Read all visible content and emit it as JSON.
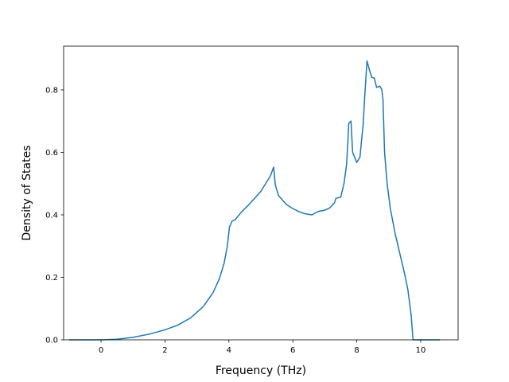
{
  "chart_data": {
    "type": "line",
    "title": "",
    "xlabel": "Frequency (THz)",
    "ylabel": "Density of States",
    "xlim": [
      -1.17,
      11.17
    ],
    "ylim": [
      0.0,
      0.94
    ],
    "grid": false,
    "legend": "none",
    "xticks": [
      0,
      2,
      4,
      6,
      8,
      10
    ],
    "yticks": [
      0.0,
      0.2,
      0.4,
      0.6,
      0.8
    ],
    "xtick_labels": [
      "0",
      "2",
      "4",
      "6",
      "8",
      "10"
    ],
    "ytick_labels": [
      "0.0",
      "0.2",
      "0.4",
      "0.6",
      "0.8"
    ],
    "series": [
      {
        "color": "#1f77b4",
        "points": [
          [
            -1.0,
            0.0
          ],
          [
            0.0,
            0.0
          ],
          [
            0.5,
            0.002
          ],
          [
            1.0,
            0.008
          ],
          [
            1.5,
            0.018
          ],
          [
            2.0,
            0.032
          ],
          [
            2.4,
            0.047
          ],
          [
            2.8,
            0.07
          ],
          [
            3.2,
            0.107
          ],
          [
            3.5,
            0.15
          ],
          [
            3.7,
            0.195
          ],
          [
            3.85,
            0.245
          ],
          [
            3.95,
            0.3
          ],
          [
            4.02,
            0.362
          ],
          [
            4.1,
            0.38
          ],
          [
            4.2,
            0.385
          ],
          [
            4.4,
            0.41
          ],
          [
            4.6,
            0.43
          ],
          [
            5.0,
            0.475
          ],
          [
            5.3,
            0.525
          ],
          [
            5.4,
            0.553
          ],
          [
            5.45,
            0.497
          ],
          [
            5.55,
            0.462
          ],
          [
            5.8,
            0.433
          ],
          [
            6.0,
            0.42
          ],
          [
            6.2,
            0.41
          ],
          [
            6.4,
            0.403
          ],
          [
            6.6,
            0.4
          ],
          [
            6.7,
            0.406
          ],
          [
            6.8,
            0.411
          ],
          [
            7.0,
            0.415
          ],
          [
            7.15,
            0.422
          ],
          [
            7.3,
            0.438
          ],
          [
            7.35,
            0.453
          ],
          [
            7.5,
            0.457
          ],
          [
            7.6,
            0.5
          ],
          [
            7.68,
            0.56
          ],
          [
            7.72,
            0.63
          ],
          [
            7.75,
            0.693
          ],
          [
            7.82,
            0.7
          ],
          [
            7.87,
            0.6
          ],
          [
            8.0,
            0.568
          ],
          [
            8.1,
            0.585
          ],
          [
            8.2,
            0.69
          ],
          [
            8.25,
            0.78
          ],
          [
            8.32,
            0.893
          ],
          [
            8.4,
            0.862
          ],
          [
            8.47,
            0.84
          ],
          [
            8.55,
            0.838
          ],
          [
            8.62,
            0.808
          ],
          [
            8.72,
            0.812
          ],
          [
            8.78,
            0.802
          ],
          [
            8.82,
            0.77
          ],
          [
            8.87,
            0.6
          ],
          [
            8.95,
            0.5
          ],
          [
            9.05,
            0.42
          ],
          [
            9.2,
            0.34
          ],
          [
            9.35,
            0.275
          ],
          [
            9.5,
            0.21
          ],
          [
            9.6,
            0.16
          ],
          [
            9.7,
            0.08
          ],
          [
            9.76,
            0.0
          ],
          [
            10.0,
            0.0
          ],
          [
            10.6,
            0.0
          ]
        ]
      }
    ]
  }
}
